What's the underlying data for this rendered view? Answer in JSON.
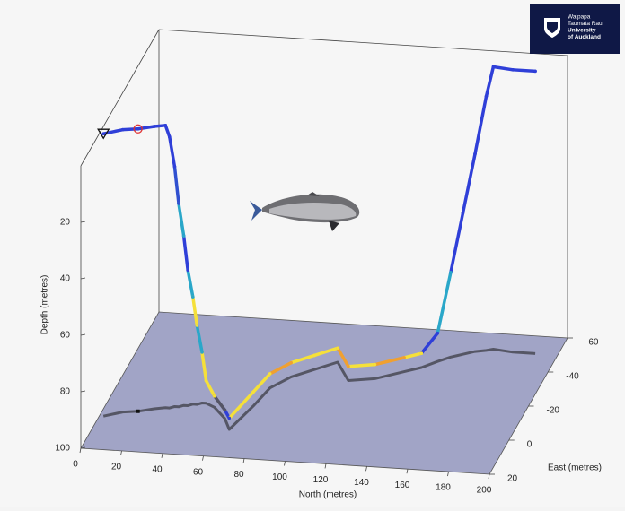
{
  "chart_data": {
    "type": "line3d",
    "xlabel": "North (metres)",
    "ylabel": "East (metres)",
    "zlabel": "Depth (metres)",
    "xlim": [
      0,
      200
    ],
    "ylim": [
      -60,
      20
    ],
    "zlim": [
      0,
      100
    ],
    "xticks": [
      0,
      20,
      40,
      60,
      80,
      100,
      120,
      140,
      160,
      180,
      200
    ],
    "yticks": [
      -60,
      -40,
      -20,
      0,
      20
    ],
    "zticks": [
      20,
      40,
      60,
      80,
      100
    ],
    "floor_color": "#a1a4c6",
    "shadow_color": "#3c3c44",
    "series": [
      {
        "x": [
          2,
          10,
          17,
          24,
          29,
          31,
          33,
          35,
          37,
          39,
          41,
          43,
          45,
          47,
          52,
          60,
          65,
          70,
          73,
          80,
          89,
          98,
          108,
          120,
          132,
          139,
          145,
          150,
          155,
          160,
          165,
          168,
          178,
          189
        ],
        "y": [
          1,
          -2,
          -3,
          -5,
          -6,
          -6,
          -7,
          -7,
          -8,
          -8,
          -9,
          -9,
          -10,
          -10,
          -8,
          -2,
          4,
          -10,
          -21,
          -28,
          -33,
          -38,
          -28,
          -30,
          -35,
          -38,
          -42,
          -45,
          -47,
          -49,
          -50,
          -51,
          -50,
          -50
        ],
        "z": [
          0,
          0,
          0,
          0,
          0,
          4,
          15,
          28,
          40,
          52,
          62,
          72,
          82,
          92,
          96,
          97,
          96,
          95,
          95,
          95,
          95,
          95,
          95,
          95,
          95,
          95,
          90,
          70,
          50,
          30,
          10,
          0,
          0,
          0
        ],
        "colors": [
          "#2f3fd8",
          "#2f3fd8",
          "#2f3fd8",
          "#2f3fd8",
          "#2f3fd8",
          "#2f3fd8",
          "#2f3fd8",
          "#3050d0",
          "#2aa7c9",
          "#2f3fd8",
          "#2aa7c9",
          "#f5e03a",
          "#2aa7c9",
          "#f5e03a",
          "#f5e03a",
          "#555566",
          "#2f3fd8",
          "#f5e03a",
          "#f5e03a",
          "#f0a030",
          "#f5e03a",
          "#f5e03a",
          "#f0a030",
          "#f5e03a",
          "#f0a030",
          "#f5e03a",
          "#2f3fd8",
          "#2aa7c9",
          "#2f3fd8",
          "#2f3fd8",
          "#2f3fd8",
          "#2f3fd8",
          "#2f3fd8",
          "#2f3fd8"
        ]
      }
    ],
    "markers": [
      {
        "symbol": "triangle",
        "x": 2,
        "y": 1,
        "z": 0,
        "color": "#111111"
      },
      {
        "symbol": "circle",
        "x": 17,
        "y": -3,
        "z": 0,
        "color": "#e03030"
      }
    ],
    "logo_text": [
      "Waipapa",
      "Taumata Rau",
      "University",
      "of Auckland"
    ]
  }
}
